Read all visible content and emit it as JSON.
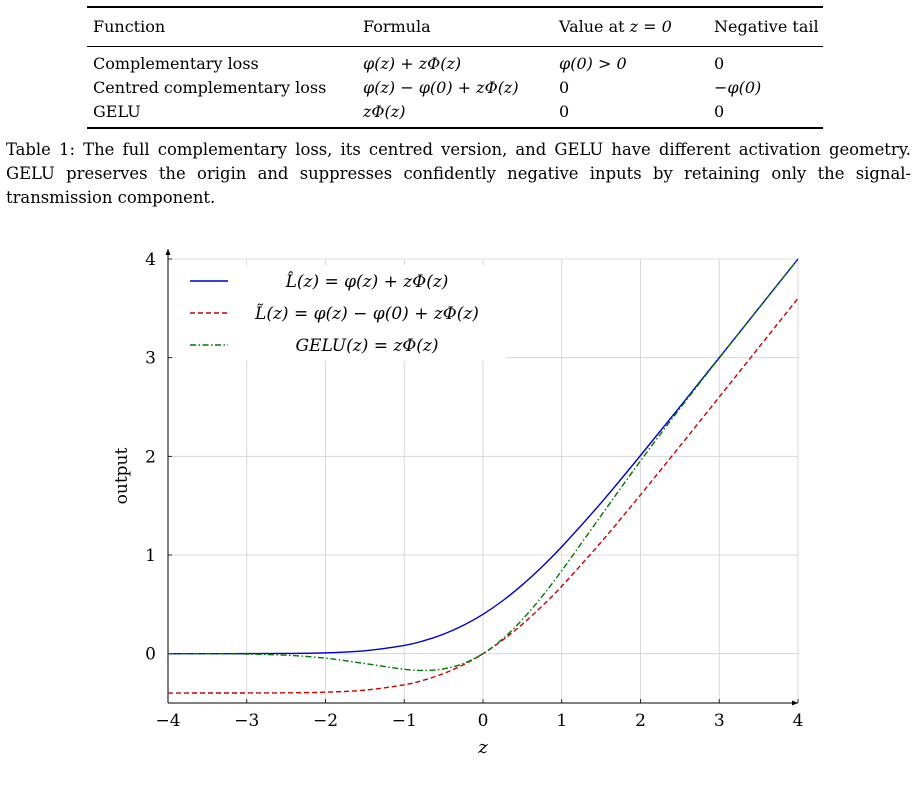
{
  "table": {
    "headers": [
      "Function",
      "Formula",
      "Value at ",
      "Negative tail"
    ],
    "header_value_math": "z = 0",
    "rows": [
      {
        "name": "Complementary loss",
        "formula": "φ(z) + zΦ(z)",
        "value": "φ(0) > 0",
        "tail": "0"
      },
      {
        "name": "Centred complementary loss",
        "formula": "φ(z) − φ(0) + zΦ(z)",
        "value": "0",
        "tail": "−φ(0)"
      },
      {
        "name": "GELU",
        "formula": "zΦ(z)",
        "value": "0",
        "tail": "0"
      }
    ]
  },
  "caption": {
    "label": "Table 1:",
    "text": "The full complementary loss, its centred version, and GELU have different activation geometry. GELU preserves the origin and suppresses confidently negative inputs by retaining only the signal-transmission component."
  },
  "chart_data": {
    "type": "line",
    "xlabel": "z",
    "ylabel": "output",
    "xlim": [
      -4,
      4
    ],
    "ylim": [
      -0.5,
      4
    ],
    "xticks": [
      -4,
      -3,
      -2,
      -1,
      0,
      1,
      2,
      3,
      4
    ],
    "yticks": [
      0,
      1,
      2,
      3,
      4
    ],
    "xtick_labels": [
      "−4",
      "−3",
      "−2",
      "−1",
      "0",
      "1",
      "2",
      "3",
      "4"
    ],
    "ytick_labels": [
      "0",
      "1",
      "2",
      "3",
      "4"
    ],
    "grid": true,
    "legend_position": "top-left",
    "x": [
      -4,
      -3.5,
      -3,
      -2.5,
      -2,
      -1.5,
      -1,
      -0.75,
      -0.5,
      -0.25,
      0,
      0.25,
      0.5,
      0.75,
      1,
      1.5,
      2,
      2.5,
      3,
      3.5,
      4
    ],
    "series": [
      {
        "name": "L̂(z) = φ(z) + zΦ(z)",
        "color": "#0000cc",
        "style": "solid",
        "values": [
          0.0,
          0.0002,
          0.0004,
          0.002,
          0.0085,
          0.0293,
          0.0833,
          0.1312,
          0.1978,
          0.2863,
          0.3989,
          0.5363,
          0.6978,
          0.8812,
          1.0833,
          1.5293,
          2.0085,
          2.502,
          3.0004,
          3.5002,
          4.0
        ]
      },
      {
        "name": "L̃(z) = φ(z) − φ(0) + zΦ(z)",
        "color": "#cc0000",
        "style": "dashed",
        "values": [
          -0.3989,
          -0.3987,
          -0.3985,
          -0.3969,
          -0.3904,
          -0.3696,
          -0.3156,
          -0.2677,
          -0.2011,
          -0.1126,
          0.0,
          0.1374,
          0.2989,
          0.4823,
          0.6844,
          1.1304,
          1.6096,
          2.1031,
          2.6015,
          3.1013,
          3.6011
        ]
      },
      {
        "name": "GELU(z) = zΦ(z)",
        "color": "#007700",
        "style": "dashdot",
        "values": [
          -0.0001,
          -0.0008,
          -0.004,
          -0.0155,
          -0.0455,
          -0.1002,
          -0.1587,
          -0.17,
          -0.1543,
          -0.1003,
          0.0,
          0.1497,
          0.3457,
          0.58,
          0.8413,
          1.3998,
          1.9545,
          2.4845,
          2.996,
          3.4992,
          3.9999
        ]
      }
    ]
  }
}
